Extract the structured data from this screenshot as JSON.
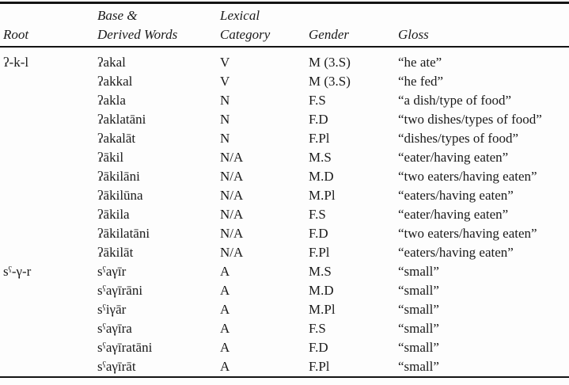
{
  "colors": {
    "background": "#fdfdfd",
    "text": "#1a1a1a",
    "rule": "#141414"
  },
  "table": {
    "column_keys": [
      "root",
      "word",
      "category",
      "gender",
      "gloss"
    ],
    "columns": [
      {
        "key": "root",
        "lines": [
          "Root"
        ]
      },
      {
        "key": "word",
        "lines": [
          "Base &",
          "Derived Words"
        ]
      },
      {
        "key": "category",
        "lines": [
          "Lexical",
          "Category"
        ]
      },
      {
        "key": "gender",
        "lines": [
          "Gender"
        ]
      },
      {
        "key": "gloss",
        "lines": [
          "Gloss"
        ]
      }
    ],
    "rows": [
      {
        "root": "ʔ-k-l",
        "word": "ʔakal",
        "category": "V",
        "gender": "M (3.S)",
        "gloss": "“he ate”"
      },
      {
        "root": "",
        "word": "ʔakkal",
        "category": "V",
        "gender": "M (3.S)",
        "gloss": "“he fed”"
      },
      {
        "root": "",
        "word": "ʔakla",
        "category": "N",
        "gender": "F.S",
        "gloss": "“a dish/type of food”"
      },
      {
        "root": "",
        "word": "ʔaklatāni",
        "category": "N",
        "gender": "F.D",
        "gloss": "“two dishes/types of food”"
      },
      {
        "root": "",
        "word": "ʔakalāt",
        "category": "N",
        "gender": "F.Pl",
        "gloss": "“dishes/types of food”"
      },
      {
        "root": "",
        "word": "ʔākil",
        "category": "N/A",
        "gender": "M.S",
        "gloss": "“eater/having eaten”"
      },
      {
        "root": "",
        "word": "ʔākilāni",
        "category": "N/A",
        "gender": "M.D",
        "gloss": "“two eaters/having eaten”"
      },
      {
        "root": "",
        "word": "ʔākilūna",
        "category": "N/A",
        "gender": "M.Pl",
        "gloss": "“eaters/having eaten”"
      },
      {
        "root": "",
        "word": "ʔākila",
        "category": "N/A",
        "gender": "F.S",
        "gloss": "“eater/having eaten”"
      },
      {
        "root": "",
        "word": "ʔākilatāni",
        "category": "N/A",
        "gender": "F.D",
        "gloss": "“two eaters/having eaten”"
      },
      {
        "root": "",
        "word": "ʔākilāt",
        "category": "N/A",
        "gender": "F.Pl",
        "gloss": "“eaters/having eaten”"
      },
      {
        "root": "sˤ-γ-r",
        "word": "sˤaγīr",
        "category": "A",
        "gender": "M.S",
        "gloss": "“small”"
      },
      {
        "root": "",
        "word": "sˤaγīrāni",
        "category": "A",
        "gender": "M.D",
        "gloss": "“small”"
      },
      {
        "root": "",
        "word": "sˤiγār",
        "category": "A",
        "gender": "M.Pl",
        "gloss": "“small”"
      },
      {
        "root": "",
        "word": "sˤaγīra",
        "category": "A",
        "gender": "F.S",
        "gloss": "“small”"
      },
      {
        "root": "",
        "word": "sˤaγīratāni",
        "category": "A",
        "gender": "F.D",
        "gloss": "“small”"
      },
      {
        "root": "",
        "word": "sˤaγīrāt",
        "category": "A",
        "gender": "F.Pl",
        "gloss": "“small”"
      }
    ]
  }
}
